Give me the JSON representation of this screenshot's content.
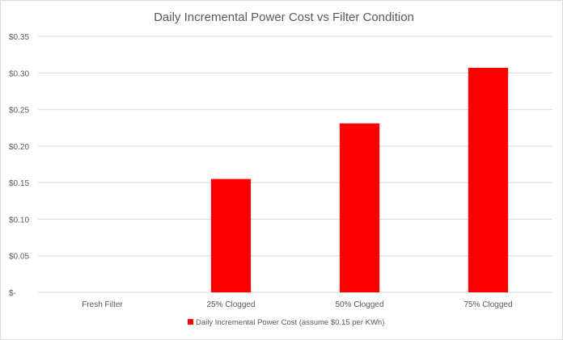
{
  "chart_data": {
    "type": "bar",
    "title": "Daily Incremental Power Cost  vs Filter Condition",
    "xlabel": "",
    "ylabel": "",
    "categories": [
      "Fresh Filter",
      "25% Clogged",
      "50% Clogged",
      "75% Clogged"
    ],
    "series": [
      {
        "name": "Daily Incremental Power Cost (assume $0.15 per KWh)",
        "values": [
          0,
          0.155,
          0.231,
          0.307
        ],
        "color": "#ff0000"
      }
    ],
    "ylim": [
      0,
      0.35
    ],
    "yticks": [
      0,
      0.05,
      0.1,
      0.15,
      0.2,
      0.25,
      0.3,
      0.35
    ],
    "ytick_labels": [
      "$-",
      "$0.05",
      "$0.10",
      "$0.15",
      "$0.20",
      "$0.25",
      "$0.30",
      "$0.35"
    ],
    "grid": true,
    "legend": "bottom",
    "colors": {
      "gridline": "#d9d9d9",
      "text": "#595959"
    }
  }
}
